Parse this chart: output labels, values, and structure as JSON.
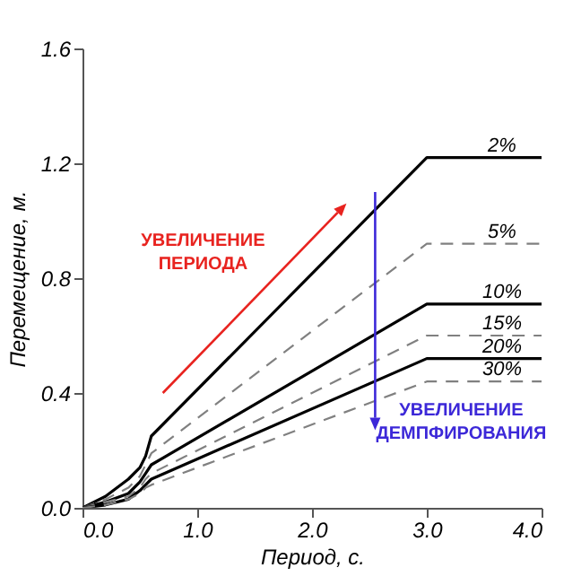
{
  "chart_data": {
    "type": "line",
    "xlabel": "Период, с.",
    "ylabel": "Перемещение, м.",
    "xlim": [
      0,
      4
    ],
    "ylim": [
      0,
      1.6
    ],
    "xticks": [
      {
        "value": 0,
        "label": "0.0"
      },
      {
        "value": 1,
        "label": "1.0"
      },
      {
        "value": 2,
        "label": "2.0"
      },
      {
        "value": 3,
        "label": "3.0"
      },
      {
        "value": 4,
        "label": "4.0"
      }
    ],
    "yticks": [
      {
        "value": 0,
        "label": "0.0"
      },
      0.4,
      0.8,
      1.2,
      1.6
    ],
    "grid": false,
    "annotations": [
      "УВЕЛИЧЕНИЕ ПЕРИОДА",
      "УВЕЛИЧЕНИЕ ДЕМПФИРОВАНИЯ"
    ],
    "series": [
      {
        "name": "2%",
        "color": "#000000",
        "line_style": "solid",
        "x": [
          0,
          0.2,
          0.4,
          0.5,
          0.55,
          0.6,
          3.0,
          4.0
        ],
        "values": [
          0,
          0.04,
          0.1,
          0.14,
          0.18,
          0.25,
          1.22,
          1.22
        ]
      },
      {
        "name": "5%",
        "color": "#808080",
        "line_style": "dashed",
        "x": [
          0,
          0.2,
          0.4,
          0.5,
          0.55,
          0.6,
          3.0,
          4.0
        ],
        "values": [
          0,
          0.03,
          0.07,
          0.11,
          0.15,
          0.19,
          0.92,
          0.92
        ]
      },
      {
        "name": "10%",
        "color": "#000000",
        "line_style": "solid",
        "x": [
          0,
          0.2,
          0.4,
          0.5,
          0.55,
          0.6,
          3.0,
          4.0
        ],
        "values": [
          0,
          0.02,
          0.05,
          0.09,
          0.12,
          0.15,
          0.71,
          0.71
        ]
      },
      {
        "name": "15%",
        "color": "#808080",
        "line_style": "dashed",
        "x": [
          0,
          0.2,
          0.4,
          0.5,
          0.55,
          0.6,
          3.0,
          4.0
        ],
        "values": [
          0,
          0.02,
          0.04,
          0.07,
          0.1,
          0.12,
          0.6,
          0.6
        ]
      },
      {
        "name": "20%",
        "color": "#000000",
        "line_style": "solid",
        "x": [
          0,
          0.2,
          0.4,
          0.5,
          0.55,
          0.6,
          3.0,
          4.0
        ],
        "values": [
          0,
          0.01,
          0.03,
          0.06,
          0.08,
          0.1,
          0.52,
          0.52
        ]
      },
      {
        "name": "30%",
        "color": "#808080",
        "line_style": "dashed",
        "x": [
          0,
          0.2,
          0.4,
          0.5,
          0.55,
          0.6,
          3.0,
          4.0
        ],
        "values": [
          0,
          0.01,
          0.03,
          0.05,
          0.07,
          0.08,
          0.44,
          0.44
        ]
      }
    ]
  }
}
